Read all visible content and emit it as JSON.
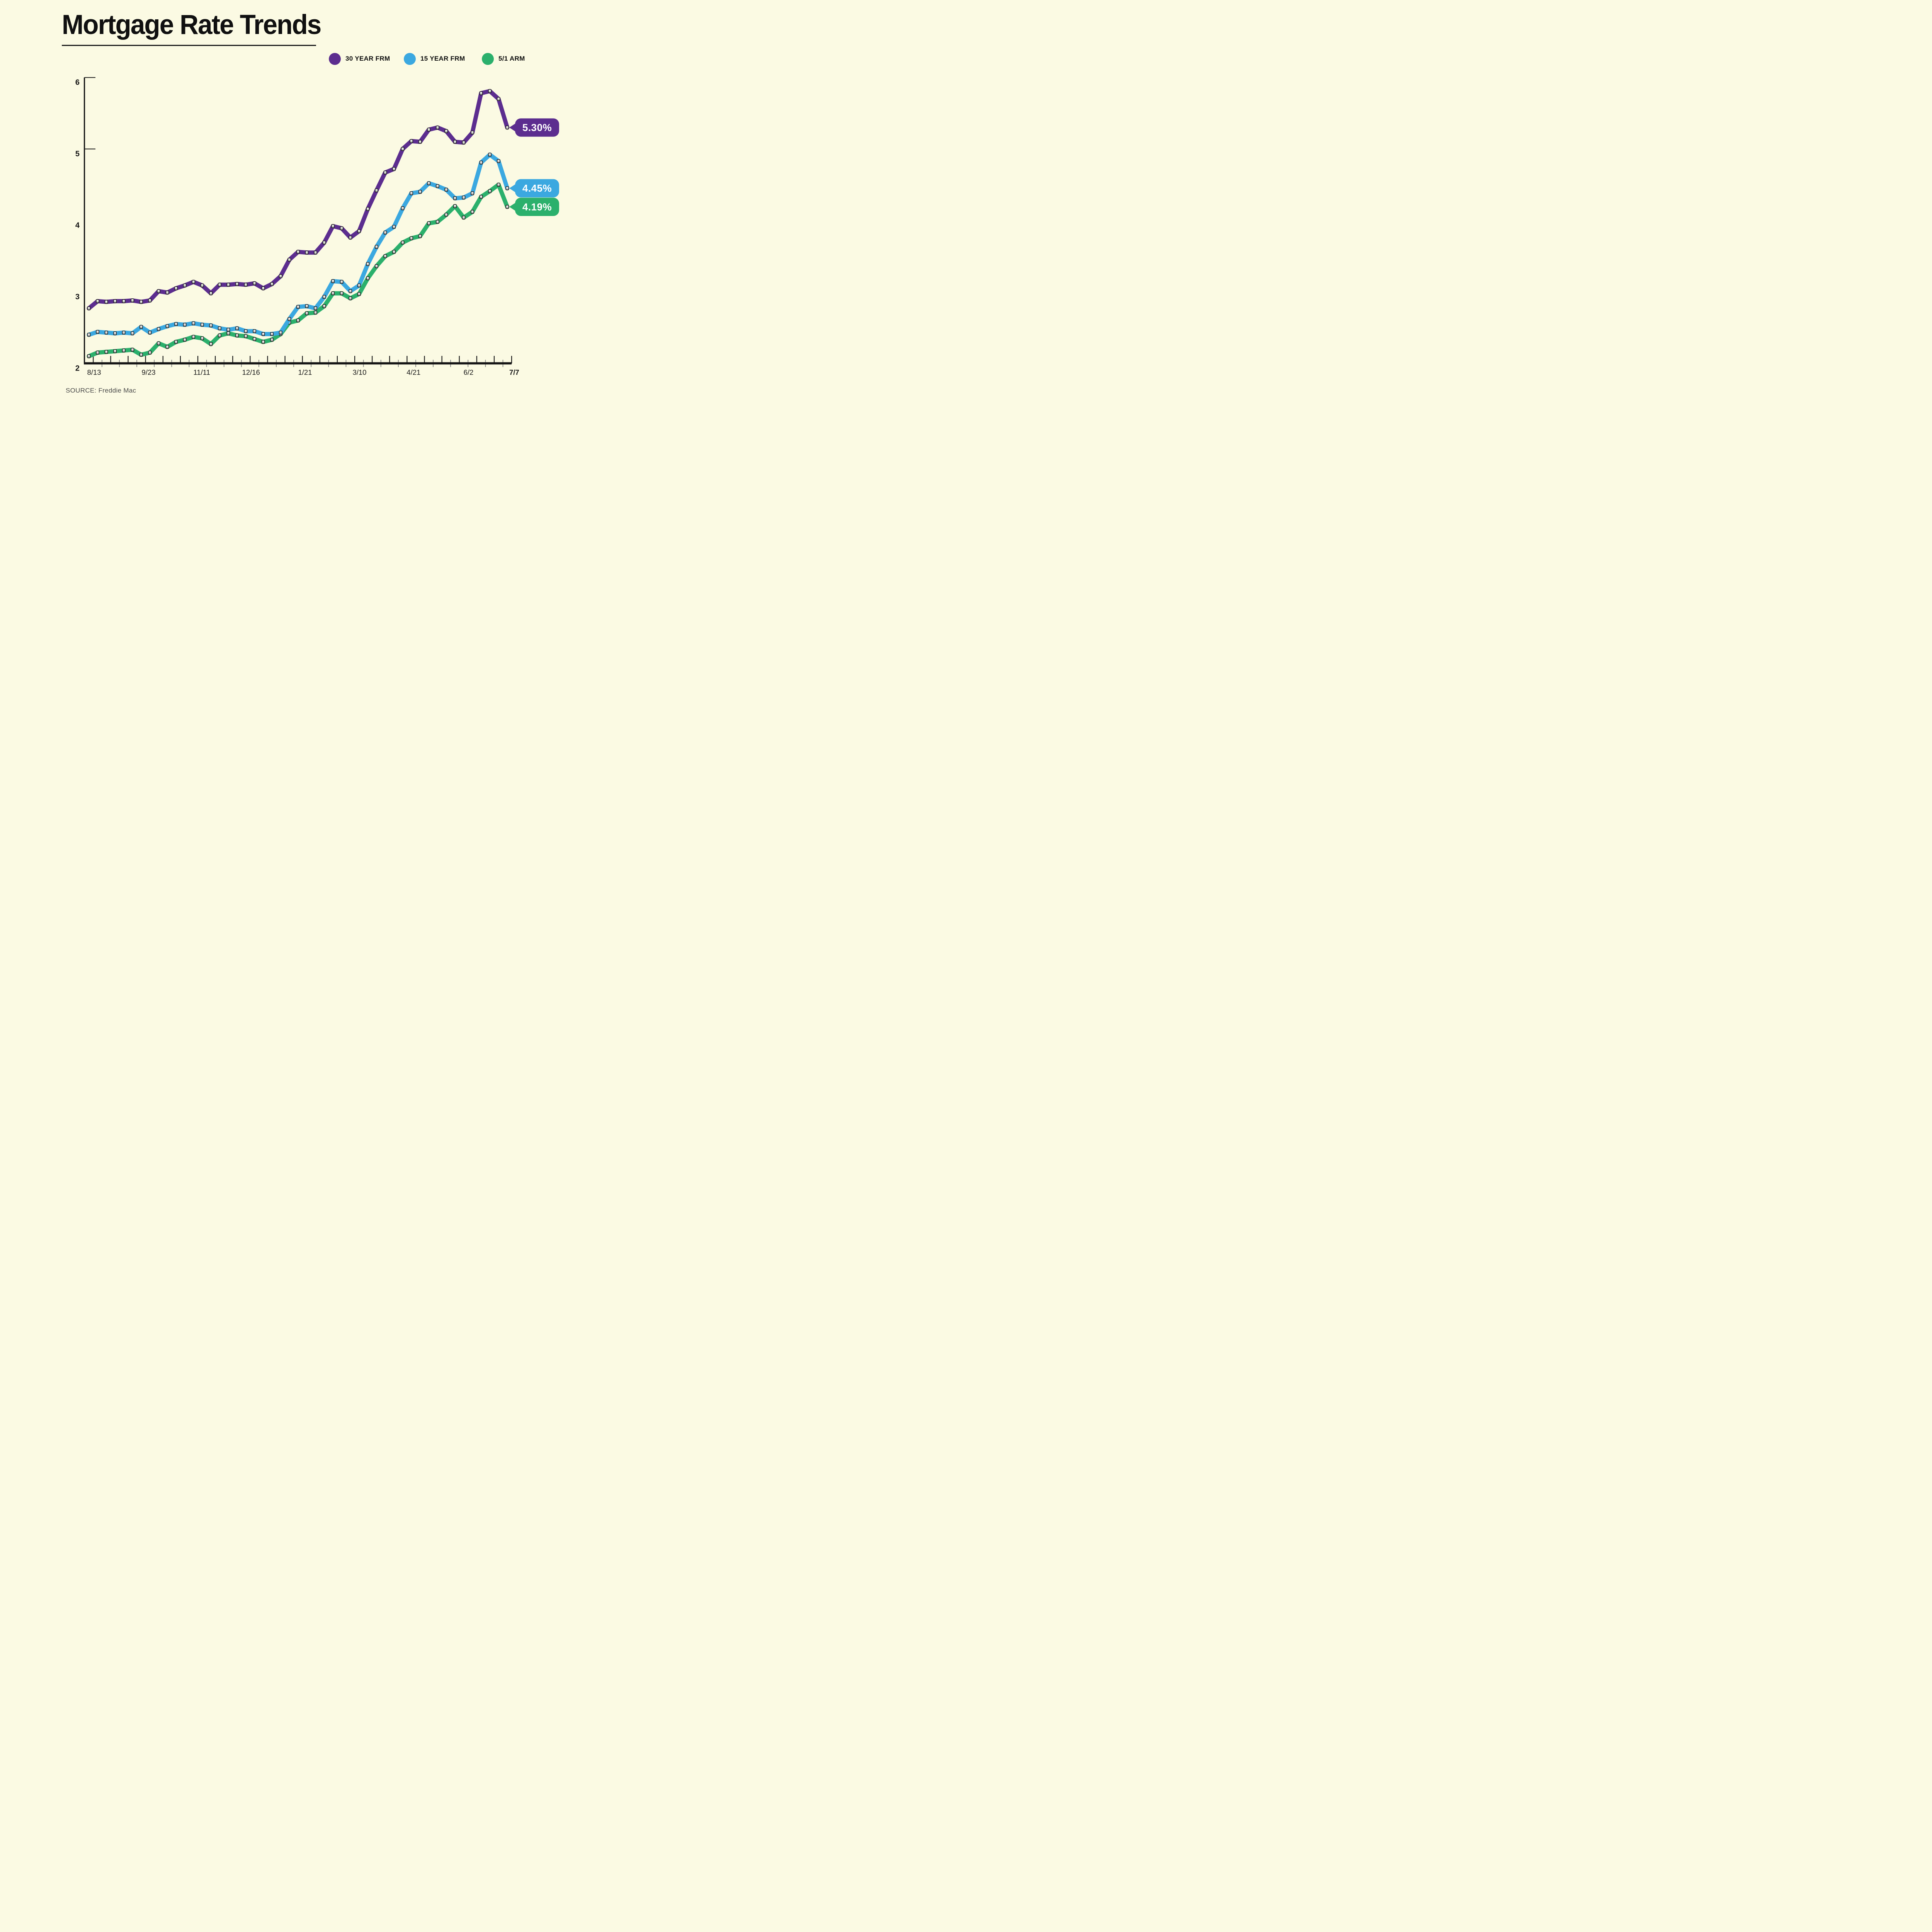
{
  "header": {
    "title": "Mortgage Rate Trends"
  },
  "footer": {
    "source": "SOURCE: Freddie Mac"
  },
  "legend": {
    "position": "top-right",
    "items": [
      {
        "label": "30 YEAR FRM",
        "color": "#5C2D8F"
      },
      {
        "label": "15 YEAR FRM",
        "color": "#3BA8E0"
      },
      {
        "label": "5/1 ARM",
        "color": "#2BB06C"
      }
    ]
  },
  "colors": {
    "background": "#FBFAE3",
    "axis": "#161616",
    "tick_minor": "#7d7d7d",
    "text": "#131313",
    "source_text": "#4a4a4a",
    "marker_border": "#1a1a1a"
  },
  "chart_data": {
    "type": "line",
    "title": "Mortgage Rate Trends",
    "xlabel": "",
    "ylabel": "",
    "ylim": [
      2,
      6
    ],
    "yticks": [
      2,
      3,
      4,
      5,
      6
    ],
    "grid": false,
    "legend_position": "top-right",
    "x_unit": "weeks (one point per week, 8/5/2021 - 7/7/2022)",
    "x_tick_labels": [
      "8/13",
      "9/23",
      "11/11",
      "12/16",
      "1/21",
      "3/10",
      "4/21",
      "6/2",
      "7/7"
    ],
    "x_tick_label_week_positions": [
      0.1,
      6.35,
      12.45,
      18.1,
      24.3,
      30.55,
      36.75,
      43.05,
      48.3
    ],
    "series": [
      {
        "name": "30 YEAR FRM",
        "color": "#5C2D8F",
        "end_label": "5.30%",
        "values": [
          2.77,
          2.87,
          2.86,
          2.87,
          2.87,
          2.88,
          2.86,
          2.88,
          3.01,
          2.99,
          3.05,
          3.09,
          3.14,
          3.09,
          2.98,
          3.1,
          3.1,
          3.11,
          3.1,
          3.12,
          3.05,
          3.11,
          3.22,
          3.45,
          3.56,
          3.55,
          3.55,
          3.69,
          3.92,
          3.89,
          3.76,
          3.85,
          4.16,
          4.42,
          4.67,
          4.72,
          5.0,
          5.11,
          5.1,
          5.27,
          5.3,
          5.25,
          5.1,
          5.09,
          5.23,
          5.78,
          5.81,
          5.7,
          5.3
        ]
      },
      {
        "name": "15 YEAR FRM",
        "color": "#3BA8E0",
        "end_label": "4.45%",
        "values": [
          2.4,
          2.44,
          2.43,
          2.42,
          2.43,
          2.42,
          2.51,
          2.43,
          2.48,
          2.52,
          2.55,
          2.54,
          2.56,
          2.54,
          2.53,
          2.49,
          2.47,
          2.49,
          2.45,
          2.45,
          2.41,
          2.41,
          2.43,
          2.62,
          2.79,
          2.8,
          2.77,
          2.93,
          3.15,
          3.14,
          3.01,
          3.09,
          3.39,
          3.63,
          3.83,
          3.91,
          4.17,
          4.38,
          4.4,
          4.52,
          4.48,
          4.43,
          4.31,
          4.32,
          4.38,
          4.81,
          4.92,
          4.83,
          4.45
        ]
      },
      {
        "name": "5/1 ARM",
        "color": "#2BB06C",
        "end_label": "4.19%",
        "values": [
          2.1,
          2.15,
          2.16,
          2.17,
          2.18,
          2.19,
          2.12,
          2.15,
          2.28,
          2.23,
          2.3,
          2.33,
          2.37,
          2.35,
          2.27,
          2.39,
          2.42,
          2.39,
          2.38,
          2.34,
          2.3,
          2.33,
          2.41,
          2.57,
          2.6,
          2.7,
          2.71,
          2.8,
          2.98,
          2.98,
          2.91,
          2.97,
          3.19,
          3.36,
          3.5,
          3.56,
          3.69,
          3.75,
          3.78,
          3.96,
          3.98,
          4.08,
          4.2,
          4.04,
          4.12,
          4.33,
          4.41,
          4.5,
          4.19
        ]
      }
    ]
  }
}
